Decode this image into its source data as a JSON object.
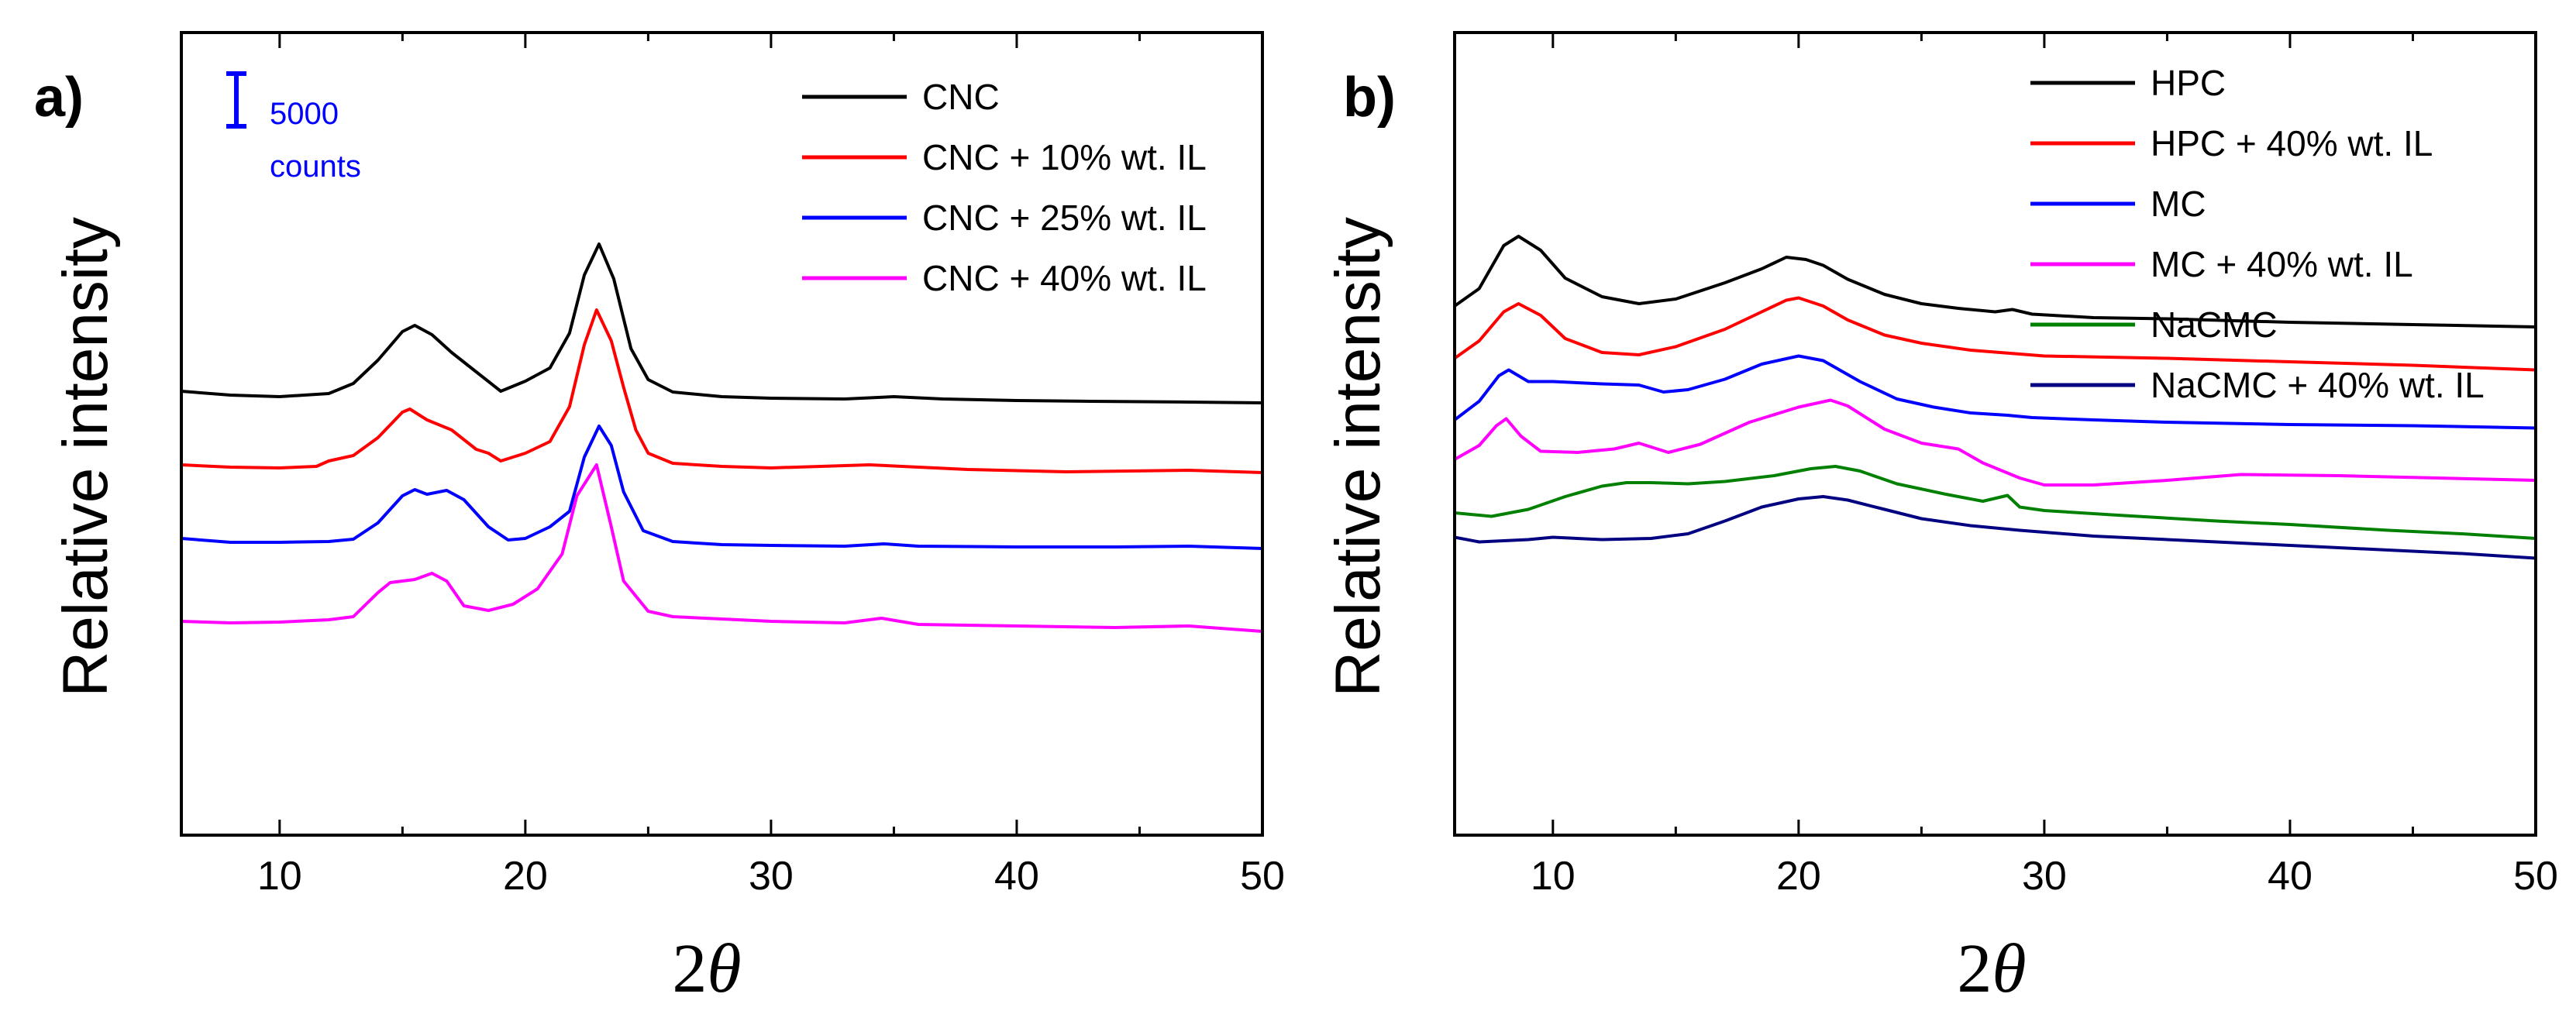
{
  "chart_data": [
    {
      "type": "line",
      "panel_label": "a)",
      "ylabel": "Relative intensity",
      "xlabel_prefix": "2",
      "xlabel_symbol": "θ",
      "xlim": [
        6,
        50
      ],
      "xticks": [
        10,
        20,
        30,
        40,
        50
      ],
      "yticks_shown": false,
      "scale_bar": {
        "value": "5000",
        "unit": "counts",
        "color": "#0000ff",
        "counts": 5000
      },
      "series": [
        {
          "name": "CNC",
          "color": "#000000",
          "x": [
            6,
            8,
            10,
            12,
            13,
            14,
            15,
            15.5,
            16.2,
            17,
            18,
            19,
            20,
            21,
            21.8,
            22.4,
            23,
            23.6,
            24.3,
            25,
            26,
            28,
            30,
            33,
            35,
            37,
            40,
            43,
            47,
            50
          ],
          "y": [
            9500,
            9000,
            8800,
            9200,
            10500,
            13500,
            17200,
            18000,
            16800,
            14500,
            12000,
            9500,
            10800,
            12500,
            17000,
            24500,
            28500,
            24000,
            15000,
            11000,
            9400,
            8800,
            8600,
            8500,
            8800,
            8500,
            8300,
            8200,
            8100,
            8000
          ]
        },
        {
          "name": "CNC + 10% wt. IL",
          "color": "#ff0000",
          "x": [
            6,
            8,
            10,
            11.5,
            12,
            13,
            14,
            15,
            15.3,
            16,
            17,
            18,
            18.5,
            19,
            20,
            21,
            21.8,
            22.4,
            22.9,
            23.5,
            24,
            24.5,
            25,
            26,
            28,
            30,
            34,
            38,
            42,
            47,
            50
          ],
          "y": [
            0,
            -300,
            -400,
            -200,
            500,
            1200,
            3500,
            6800,
            7200,
            5800,
            4500,
            2000,
            1500,
            500,
            1500,
            3000,
            7500,
            15500,
            20000,
            16000,
            10000,
            4500,
            1500,
            200,
            -200,
            -400,
            0,
            -600,
            -900,
            -700,
            -1000
          ]
        },
        {
          "name": "CNC + 25% wt. IL",
          "color": "#0000ff",
          "x": [
            6,
            8,
            10,
            12,
            13,
            14,
            15,
            15.5,
            16,
            16.8,
            17.5,
            18.5,
            19.3,
            20,
            21,
            21.8,
            22.4,
            23,
            23.5,
            24,
            24.8,
            26,
            28,
            30,
            33,
            34.6,
            36,
            40,
            44,
            47,
            50
          ],
          "y": [
            -9500,
            -10000,
            -10000,
            -9900,
            -9600,
            -7500,
            -4000,
            -3200,
            -3800,
            -3300,
            -4500,
            -8000,
            -9700,
            -9500,
            -8000,
            -6000,
            1000,
            5000,
            2500,
            -3500,
            -8500,
            -9900,
            -10300,
            -10400,
            -10500,
            -10200,
            -10500,
            -10600,
            -10600,
            -10500,
            -10800
          ]
        },
        {
          "name": "CNC + 40% wt. IL",
          "color": "#ff00ff",
          "x": [
            6,
            8,
            10,
            12,
            13,
            14,
            14.5,
            15.5,
            16.2,
            16.8,
            17.5,
            18.5,
            19.5,
            20.5,
            21.5,
            22.1,
            22.9,
            23.5,
            24,
            25,
            26,
            28,
            30,
            33,
            34.5,
            36,
            40,
            44,
            47,
            50
          ],
          "y": [
            -20200,
            -20400,
            -20300,
            -20000,
            -19600,
            -16500,
            -15200,
            -14800,
            -14000,
            -15000,
            -18200,
            -18800,
            -18000,
            -16000,
            -11500,
            -4000,
            0,
            -8000,
            -15000,
            -18900,
            -19600,
            -19900,
            -20200,
            -20400,
            -19800,
            -20600,
            -20800,
            -21000,
            -20800,
            -21500
          ]
        }
      ],
      "legend": [
        "CNC",
        "CNC + 10% wt. IL",
        "CNC + 25% wt. IL",
        "CNC + 40% wt. IL"
      ]
    },
    {
      "type": "line",
      "panel_label": "b)",
      "ylabel": "Relative intensity",
      "xlabel_prefix": "2",
      "xlabel_symbol": "θ",
      "xlim": [
        6,
        50
      ],
      "xticks": [
        10,
        20,
        30,
        40,
        50
      ],
      "yticks_shown": false,
      "series": [
        {
          "name": "HPC",
          "color": "#000000",
          "x": [
            6,
            7,
            8,
            8.6,
            9.5,
            10.5,
            12,
            13.5,
            15,
            17,
            18.5,
            19.5,
            20.3,
            21,
            22,
            23.5,
            25,
            26.5,
            28,
            28.7,
            29.5,
            32,
            35,
            40,
            45,
            50
          ],
          "y": [
            10,
            25,
            62,
            70,
            58,
            34,
            18,
            12,
            16,
            30,
            42,
            52,
            50,
            45,
            33,
            20,
            12,
            8,
            5,
            7,
            3,
            0,
            -1,
            -4,
            -6,
            -8
          ]
        },
        {
          "name": "HPC + 40% wt. IL",
          "color": "#ff0000",
          "x": [
            6,
            7,
            8,
            8.6,
            9.5,
            10.5,
            12,
            13.5,
            15,
            17,
            18.5,
            19.5,
            20,
            21,
            22,
            23.5,
            25,
            27,
            30,
            35,
            40,
            45,
            50
          ],
          "y": [
            -35,
            -20,
            5,
            12,
            2,
            -18,
            -30,
            -32,
            -25,
            -10,
            5,
            15,
            17,
            10,
            -2,
            -15,
            -22,
            -28,
            -33,
            -35,
            -38,
            -41,
            -45
          ]
        },
        {
          "name": "MC",
          "color": "#0000ff",
          "x": [
            6,
            7,
            7.8,
            8.2,
            9,
            10,
            12,
            13.5,
            14.5,
            15.5,
            17,
            18.5,
            20,
            21,
            22.5,
            24,
            25.5,
            27,
            28.5,
            29.5,
            32,
            35,
            40,
            45,
            50
          ],
          "y": [
            -88,
            -72,
            -50,
            -45,
            -55,
            -55,
            -57,
            -58,
            -64,
            -62,
            -53,
            -40,
            -33,
            -37,
            -55,
            -70,
            -77,
            -82,
            -84,
            -86,
            -88,
            -90,
            -92,
            -93,
            -95
          ]
        },
        {
          "name": "MC + 40% wt. IL",
          "color": "#ff00ff",
          "x": [
            6,
            7,
            7.7,
            8.1,
            8.7,
            9.5,
            11,
            12.5,
            13.5,
            14.7,
            16,
            18,
            20,
            21.3,
            22,
            23.5,
            25,
            26.5,
            27.5,
            29,
            30,
            32,
            35,
            38,
            42,
            46,
            50
          ],
          "y": [
            -122,
            -110,
            -93,
            -87,
            -102,
            -115,
            -116,
            -113,
            -108,
            -116,
            -109,
            -90,
            -77,
            -71,
            -76,
            -96,
            -108,
            -113,
            -125,
            -138,
            -144,
            -144,
            -140,
            -135,
            -136,
            -138,
            -140
          ]
        },
        {
          "name": "NaCMC",
          "color": "#008000",
          "x": [
            6,
            7.5,
            9,
            10.5,
            12,
            13,
            14,
            15.5,
            17,
            19,
            20.5,
            21.5,
            22.5,
            24,
            26,
            27.5,
            28.5,
            29,
            30,
            33,
            37,
            40,
            44,
            47,
            50
          ],
          "y": [
            -168,
            -171,
            -165,
            -154,
            -145,
            -142,
            -142,
            -143,
            -141,
            -136,
            -130,
            -128,
            -132,
            -143,
            -152,
            -158,
            -153,
            -163,
            -166,
            -170,
            -175,
            -178,
            -183,
            -186,
            -190
          ]
        },
        {
          "name": "NaCMC + 40% wt. IL",
          "color": "#000080",
          "x": [
            6,
            7,
            9,
            10,
            12,
            14,
            15.5,
            17,
            18.5,
            20,
            21,
            22,
            23.5,
            25,
            27,
            29,
            32,
            35,
            38,
            41,
            44,
            47,
            50
          ],
          "y": [
            -189,
            -193,
            -191,
            -189,
            -191,
            -190,
            -186,
            -175,
            -163,
            -156,
            -154,
            -157,
            -165,
            -173,
            -179,
            -183,
            -188,
            -191,
            -194,
            -197,
            -200,
            -203,
            -207
          ]
        }
      ],
      "legend": [
        "HPC",
        "HPC + 40% wt. IL",
        "MC",
        "MC + 40% wt. IL",
        "NaCMC",
        "NaCMC + 40% wt. IL"
      ]
    }
  ]
}
